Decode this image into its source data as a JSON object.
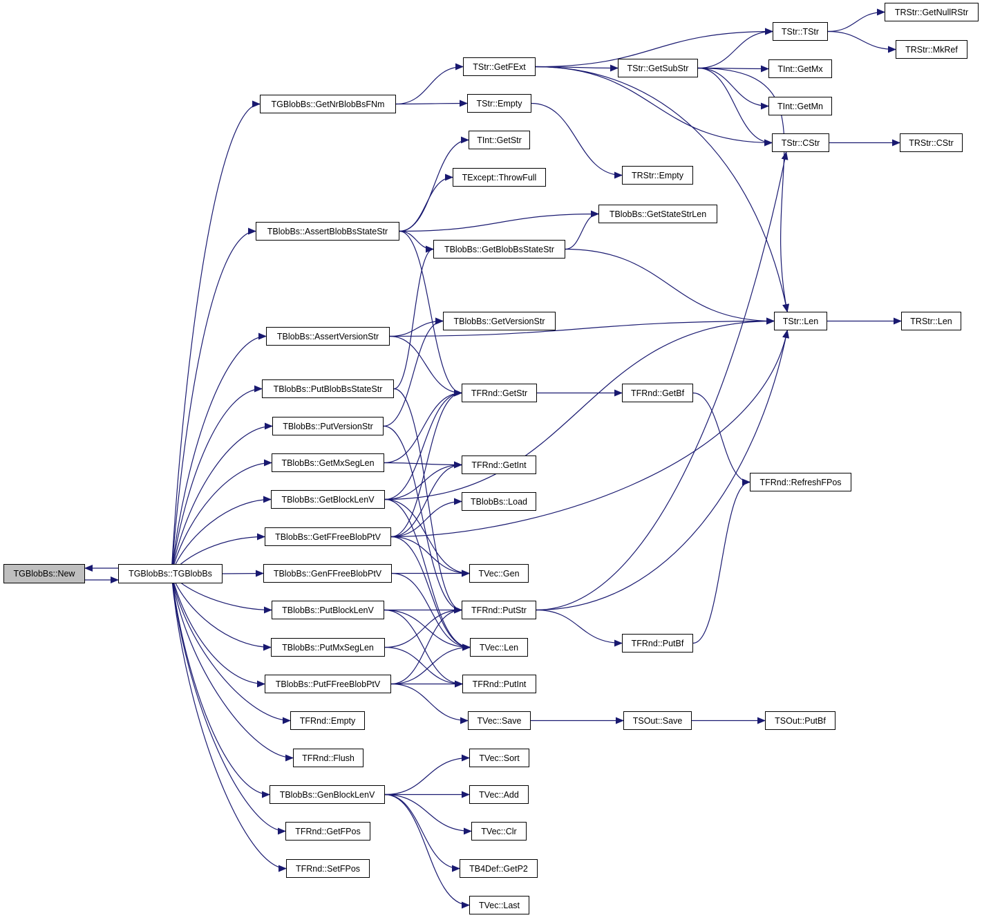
{
  "colors": {
    "edge": "#191970",
    "node_border": "#000000",
    "current_node_fill": "#bfbfbf"
  },
  "current": "TGBlobBs::New",
  "nodes": [
    "TGBlobBs::New",
    "TGBlobBs::TGBlobBs",
    "TGBlobBs::GetNrBlobBsFNm",
    "TBlobBs::AssertBlobBsStateStr",
    "TBlobBs::AssertVersionStr",
    "TBlobBs::PutBlobBsStateStr",
    "TBlobBs::PutVersionStr",
    "TBlobBs::GetMxSegLen",
    "TBlobBs::GetBlockLenV",
    "TBlobBs::GetFFreeBlobPtV",
    "TBlobBs::GenFFreeBlobPtV",
    "TBlobBs::PutBlockLenV",
    "TBlobBs::PutMxSegLen",
    "TBlobBs::PutFFreeBlobPtV",
    "TFRnd::Empty",
    "TFRnd::Flush",
    "TBlobBs::GenBlockLenV",
    "TFRnd::GetFPos",
    "TFRnd::SetFPos",
    "TStr::GetFExt",
    "TStr::Empty",
    "TInt::GetStr",
    "TExcept::ThrowFull",
    "TBlobBs::GetBlobBsStateStr",
    "TBlobBs::GetVersionStr",
    "TFRnd::GetStr",
    "TFRnd::GetInt",
    "TBlobBs::Load",
    "TVec::Gen",
    "TFRnd::PutStr",
    "TVec::Len",
    "TFRnd::PutInt",
    "TVec::Save",
    "TVec::Sort",
    "TVec::Add",
    "TVec::Clr",
    "TB4Def::GetP2",
    "TVec::Last",
    "TStr::GetSubStr",
    "TRStr::Empty",
    "TBlobBs::GetStateStrLen",
    "TFRnd::GetBf",
    "TFRnd::PutBf",
    "TSOut::Save",
    "TStr::TStr",
    "TInt::GetMx",
    "TInt::GetMn",
    "TStr::CStr",
    "TStr::Len",
    "TFRnd::RefreshFPos",
    "TSOut::PutBf",
    "TRStr::GetNullRStr",
    "TRStr::MkRef",
    "TRStr::CStr",
    "TRStr::Len"
  ],
  "edges": [
    [
      "TGBlobBs::New",
      "TGBlobBs::TGBlobBs"
    ],
    [
      "TGBlobBs::TGBlobBs",
      "TGBlobBs::New"
    ],
    [
      "TGBlobBs::TGBlobBs",
      "TGBlobBs::GetNrBlobBsFNm"
    ],
    [
      "TGBlobBs::TGBlobBs",
      "TBlobBs::AssertBlobBsStateStr"
    ],
    [
      "TGBlobBs::TGBlobBs",
      "TBlobBs::AssertVersionStr"
    ],
    [
      "TGBlobBs::TGBlobBs",
      "TBlobBs::PutBlobBsStateStr"
    ],
    [
      "TGBlobBs::TGBlobBs",
      "TBlobBs::PutVersionStr"
    ],
    [
      "TGBlobBs::TGBlobBs",
      "TBlobBs::GetMxSegLen"
    ],
    [
      "TGBlobBs::TGBlobBs",
      "TBlobBs::GetBlockLenV"
    ],
    [
      "TGBlobBs::TGBlobBs",
      "TBlobBs::GetFFreeBlobPtV"
    ],
    [
      "TGBlobBs::TGBlobBs",
      "TBlobBs::GenFFreeBlobPtV"
    ],
    [
      "TGBlobBs::TGBlobBs",
      "TBlobBs::PutBlockLenV"
    ],
    [
      "TGBlobBs::TGBlobBs",
      "TBlobBs::PutMxSegLen"
    ],
    [
      "TGBlobBs::TGBlobBs",
      "TBlobBs::PutFFreeBlobPtV"
    ],
    [
      "TGBlobBs::TGBlobBs",
      "TFRnd::Empty"
    ],
    [
      "TGBlobBs::TGBlobBs",
      "TFRnd::Flush"
    ],
    [
      "TGBlobBs::TGBlobBs",
      "TBlobBs::GenBlockLenV"
    ],
    [
      "TGBlobBs::TGBlobBs",
      "TFRnd::GetFPos"
    ],
    [
      "TGBlobBs::TGBlobBs",
      "TFRnd::SetFPos"
    ],
    [
      "TGBlobBs::GetNrBlobBsFNm",
      "TStr::GetFExt"
    ],
    [
      "TGBlobBs::GetNrBlobBsFNm",
      "TStr::Empty"
    ],
    [
      "TStr::GetFExt",
      "TStr::TStr"
    ],
    [
      "TStr::GetFExt",
      "TStr::GetSubStr"
    ],
    [
      "TStr::GetFExt",
      "TStr::CStr"
    ],
    [
      "TStr::GetFExt",
      "TStr::Len"
    ],
    [
      "TStr::GetSubStr",
      "TStr::TStr"
    ],
    [
      "TStr::GetSubStr",
      "TInt::GetMx"
    ],
    [
      "TStr::GetSubStr",
      "TInt::GetMn"
    ],
    [
      "TStr::GetSubStr",
      "TStr::CStr"
    ],
    [
      "TStr::GetSubStr",
      "TStr::Len"
    ],
    [
      "TStr::TStr",
      "TRStr::GetNullRStr"
    ],
    [
      "TStr::TStr",
      "TRStr::MkRef"
    ],
    [
      "TStr::Empty",
      "TRStr::Empty"
    ],
    [
      "TStr::CStr",
      "TRStr::CStr"
    ],
    [
      "TStr::Len",
      "TRStr::Len"
    ],
    [
      "TBlobBs::AssertBlobBsStateStr",
      "TInt::GetStr"
    ],
    [
      "TBlobBs::AssertBlobBsStateStr",
      "TExcept::ThrowFull"
    ],
    [
      "TBlobBs::AssertBlobBsStateStr",
      "TBlobBs::GetStateStrLen"
    ],
    [
      "TBlobBs::AssertBlobBsStateStr",
      "TBlobBs::GetBlobBsStateStr"
    ],
    [
      "TBlobBs::AssertBlobBsStateStr",
      "TFRnd::GetStr"
    ],
    [
      "TBlobBs::GetBlobBsStateStr",
      "TBlobBs::GetStateStrLen"
    ],
    [
      "TBlobBs::GetBlobBsStateStr",
      "TStr::Len"
    ],
    [
      "TBlobBs::AssertVersionStr",
      "TStr::Len"
    ],
    [
      "TBlobBs::AssertVersionStr",
      "TBlobBs::GetVersionStr"
    ],
    [
      "TBlobBs::AssertVersionStr",
      "TFRnd::GetStr"
    ],
    [
      "TBlobBs::PutBlobBsStateStr",
      "TBlobBs::GetBlobBsStateStr"
    ],
    [
      "TBlobBs::PutBlobBsStateStr",
      "TFRnd::PutStr"
    ],
    [
      "TBlobBs::PutVersionStr",
      "TBlobBs::GetVersionStr"
    ],
    [
      "TBlobBs::PutVersionStr",
      "TFRnd::PutStr"
    ],
    [
      "TBlobBs::GetMxSegLen",
      "TFRnd::GetStr"
    ],
    [
      "TBlobBs::GetMxSegLen",
      "TFRnd::GetInt"
    ],
    [
      "TBlobBs::GetBlockLenV",
      "TFRnd::GetStr"
    ],
    [
      "TBlobBs::GetBlockLenV",
      "TFRnd::GetInt"
    ],
    [
      "TBlobBs::GetBlockLenV",
      "TStr::Len"
    ],
    [
      "TBlobBs::GetBlockLenV",
      "TVec::Gen"
    ],
    [
      "TBlobBs::GetBlockLenV",
      "TVec::Len"
    ],
    [
      "TBlobBs::GetFFreeBlobPtV",
      "TFRnd::GetStr"
    ],
    [
      "TBlobBs::GetFFreeBlobPtV",
      "TFRnd::GetInt"
    ],
    [
      "TBlobBs::GetFFreeBlobPtV",
      "TBlobBs::Load"
    ],
    [
      "TBlobBs::GetFFreeBlobPtV",
      "TStr::Len"
    ],
    [
      "TBlobBs::GetFFreeBlobPtV",
      "TVec::Gen"
    ],
    [
      "TBlobBs::GetFFreeBlobPtV",
      "TVec::Len"
    ],
    [
      "TBlobBs::GenFFreeBlobPtV",
      "TVec::Gen"
    ],
    [
      "TBlobBs::GenFFreeBlobPtV",
      "TVec::Len"
    ],
    [
      "TBlobBs::PutBlockLenV",
      "TFRnd::PutStr"
    ],
    [
      "TBlobBs::PutBlockLenV",
      "TVec::Len"
    ],
    [
      "TBlobBs::PutBlockLenV",
      "TFRnd::PutInt"
    ],
    [
      "TBlobBs::PutMxSegLen",
      "TFRnd::PutStr"
    ],
    [
      "TBlobBs::PutMxSegLen",
      "TFRnd::PutInt"
    ],
    [
      "TBlobBs::PutFFreeBlobPtV",
      "TFRnd::PutStr"
    ],
    [
      "TBlobBs::PutFFreeBlobPtV",
      "TVec::Len"
    ],
    [
      "TBlobBs::PutFFreeBlobPtV",
      "TFRnd::PutInt"
    ],
    [
      "TBlobBs::PutFFreeBlobPtV",
      "TVec::Save"
    ],
    [
      "TBlobBs::GenBlockLenV",
      "TVec::Sort"
    ],
    [
      "TBlobBs::GenBlockLenV",
      "TVec::Add"
    ],
    [
      "TBlobBs::GenBlockLenV",
      "TVec::Clr"
    ],
    [
      "TBlobBs::GenBlockLenV",
      "TB4Def::GetP2"
    ],
    [
      "TBlobBs::GenBlockLenV",
      "TVec::Last"
    ],
    [
      "TFRnd::GetStr",
      "TFRnd::GetBf"
    ],
    [
      "TFRnd::GetBf",
      "TFRnd::RefreshFPos"
    ],
    [
      "TFRnd::PutStr",
      "TStr::CStr"
    ],
    [
      "TFRnd::PutStr",
      "TStr::Len"
    ],
    [
      "TFRnd::PutStr",
      "TFRnd::PutBf"
    ],
    [
      "TFRnd::PutBf",
      "TFRnd::RefreshFPos"
    ],
    [
      "TVec::Save",
      "TSOut::Save"
    ],
    [
      "TSOut::Save",
      "TSOut::PutBf"
    ]
  ]
}
